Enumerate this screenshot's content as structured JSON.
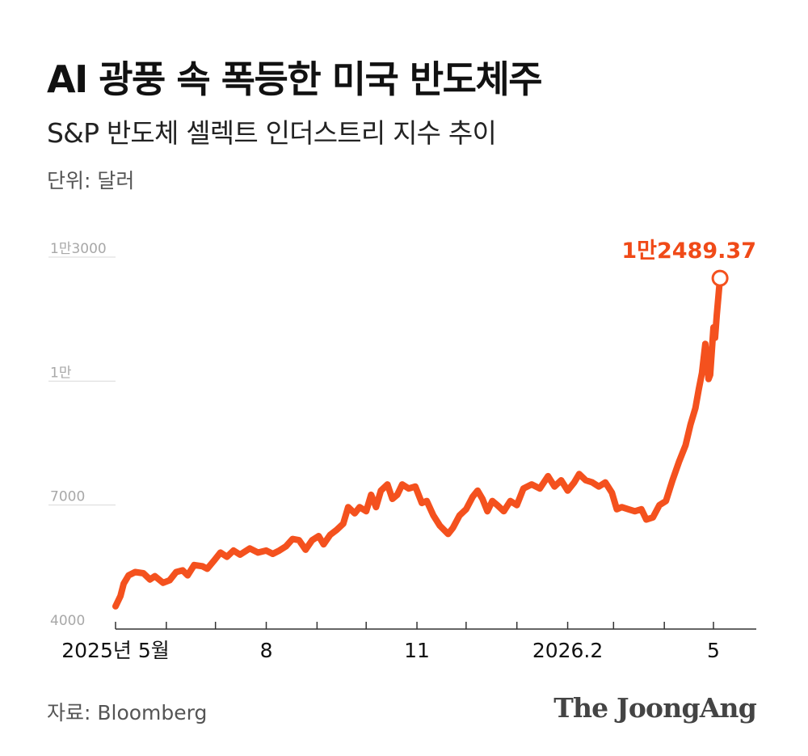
{
  "title": "AI 광풍 속 폭등한 미국 반도체주",
  "subtitle": "S&P 반도체 셀렉트 인더스트리 지수 추이",
  "unit": "단위: 달러",
  "source": "자료: Bloomberg",
  "logo": "The JoongAng",
  "colors": {
    "line": "#f4511e",
    "axis": "#333333",
    "grid": "#d9d9d9"
  },
  "chart_data": {
    "type": "line",
    "title": "AI 광풍 속 폭등한 미국 반도체주",
    "subtitle": "S&P 반도체 셀렉트 인더스트리 지수 추이",
    "ylabel": "단위: 달러",
    "ylim": [
      4000,
      13000
    ],
    "yticks": [
      {
        "value": 4000,
        "label": "4000"
      },
      {
        "value": 7000,
        "label": "7000"
      },
      {
        "value": 10000,
        "label": "1만"
      },
      {
        "value": 13000,
        "label": "1만3000"
      }
    ],
    "xlim": [
      "2025-05-01",
      "2026-05-31"
    ],
    "xticks": [
      {
        "date": "2025-05-01",
        "label": "2025년 5월"
      },
      {
        "date": "2025-06-01",
        "label": ""
      },
      {
        "date": "2025-07-01",
        "label": ""
      },
      {
        "date": "2025-08-01",
        "label": "8"
      },
      {
        "date": "2025-09-01",
        "label": ""
      },
      {
        "date": "2025-10-01",
        "label": ""
      },
      {
        "date": "2025-11-01",
        "label": "11"
      },
      {
        "date": "2025-12-01",
        "label": ""
      },
      {
        "date": "2026-01-01",
        "label": ""
      },
      {
        "date": "2026-02-01",
        "label": "2026.2"
      },
      {
        "date": "2026-03-01",
        "label": ""
      },
      {
        "date": "2026-04-01",
        "label": ""
      },
      {
        "date": "2026-05-01",
        "label": "5"
      }
    ],
    "annotation": {
      "date": "2026-05-05",
      "value": 12489.37,
      "label": "1만2489.37"
    },
    "series": [
      {
        "points": [
          [
            "2025-05-01",
            4550
          ],
          [
            "2025-05-04",
            4800
          ],
          [
            "2025-05-06",
            5100
          ],
          [
            "2025-05-09",
            5300
          ],
          [
            "2025-05-13",
            5380
          ],
          [
            "2025-05-18",
            5350
          ],
          [
            "2025-05-22",
            5200
          ],
          [
            "2025-05-25",
            5280
          ],
          [
            "2025-05-30",
            5120
          ],
          [
            "2025-06-03",
            5180
          ],
          [
            "2025-06-07",
            5380
          ],
          [
            "2025-06-11",
            5420
          ],
          [
            "2025-06-14",
            5300
          ],
          [
            "2025-06-18",
            5550
          ],
          [
            "2025-06-23",
            5520
          ],
          [
            "2025-06-26",
            5460
          ],
          [
            "2025-06-30",
            5650
          ],
          [
            "2025-07-04",
            5850
          ],
          [
            "2025-07-08",
            5750
          ],
          [
            "2025-07-12",
            5900
          ],
          [
            "2025-07-16",
            5800
          ],
          [
            "2025-07-22",
            5950
          ],
          [
            "2025-07-27",
            5850
          ],
          [
            "2025-08-01",
            5900
          ],
          [
            "2025-08-05",
            5820
          ],
          [
            "2025-08-09",
            5900
          ],
          [
            "2025-08-13",
            6000
          ],
          [
            "2025-08-17",
            6180
          ],
          [
            "2025-08-21",
            6150
          ],
          [
            "2025-08-25",
            5920
          ],
          [
            "2025-08-29",
            6150
          ],
          [
            "2025-09-02",
            6250
          ],
          [
            "2025-09-05",
            6050
          ],
          [
            "2025-09-09",
            6280
          ],
          [
            "2025-09-13",
            6400
          ],
          [
            "2025-09-17",
            6550
          ],
          [
            "2025-09-20",
            6950
          ],
          [
            "2025-09-24",
            6800
          ],
          [
            "2025-09-27",
            6950
          ],
          [
            "2025-10-01",
            6850
          ],
          [
            "2025-10-04",
            7250
          ],
          [
            "2025-10-07",
            6950
          ],
          [
            "2025-10-10",
            7350
          ],
          [
            "2025-10-14",
            7500
          ],
          [
            "2025-10-17",
            7150
          ],
          [
            "2025-10-20",
            7250
          ],
          [
            "2025-10-23",
            7500
          ],
          [
            "2025-10-27",
            7400
          ],
          [
            "2025-10-31",
            7450
          ],
          [
            "2025-11-04",
            7050
          ],
          [
            "2025-11-07",
            7100
          ],
          [
            "2025-11-11",
            6750
          ],
          [
            "2025-11-15",
            6500
          ],
          [
            "2025-11-20",
            6300
          ],
          [
            "2025-11-23",
            6450
          ],
          [
            "2025-11-27",
            6750
          ],
          [
            "2025-12-01",
            6900
          ],
          [
            "2025-12-05",
            7200
          ],
          [
            "2025-12-08",
            7350
          ],
          [
            "2025-12-11",
            7150
          ],
          [
            "2025-12-14",
            6850
          ],
          [
            "2025-12-17",
            7100
          ],
          [
            "2025-12-20",
            7000
          ],
          [
            "2025-12-24",
            6850
          ],
          [
            "2025-12-28",
            7100
          ],
          [
            "2026-01-01",
            7000
          ],
          [
            "2026-01-05",
            7400
          ],
          [
            "2026-01-10",
            7500
          ],
          [
            "2026-01-15",
            7400
          ],
          [
            "2026-01-20",
            7700
          ],
          [
            "2026-01-24",
            7450
          ],
          [
            "2026-01-28",
            7600
          ],
          [
            "2026-02-01",
            7350
          ],
          [
            "2026-02-05",
            7550
          ],
          [
            "2026-02-08",
            7750
          ],
          [
            "2026-02-12",
            7600
          ],
          [
            "2026-02-16",
            7550
          ],
          [
            "2026-02-20",
            7450
          ],
          [
            "2026-02-24",
            7550
          ],
          [
            "2026-02-28",
            7300
          ],
          [
            "2026-03-03",
            6900
          ],
          [
            "2026-03-06",
            6950
          ],
          [
            "2026-03-10",
            6900
          ],
          [
            "2026-03-14",
            6850
          ],
          [
            "2026-03-18",
            6900
          ],
          [
            "2026-03-21",
            6650
          ],
          [
            "2026-03-25",
            6700
          ],
          [
            "2026-03-29",
            7000
          ],
          [
            "2026-04-02",
            7100
          ],
          [
            "2026-04-06",
            7600
          ],
          [
            "2026-04-10",
            8050
          ],
          [
            "2026-04-14",
            8450
          ],
          [
            "2026-04-17",
            8950
          ],
          [
            "2026-04-20",
            9350
          ],
          [
            "2026-04-22",
            9800
          ],
          [
            "2026-04-24",
            10200
          ],
          [
            "2026-04-26",
            10900
          ],
          [
            "2026-04-28",
            10050
          ],
          [
            "2026-04-29",
            10150
          ],
          [
            "2026-05-01",
            11300
          ],
          [
            "2026-05-02",
            11050
          ],
          [
            "2026-05-03",
            11600
          ],
          [
            "2026-05-05",
            12489.37
          ]
        ]
      }
    ]
  }
}
